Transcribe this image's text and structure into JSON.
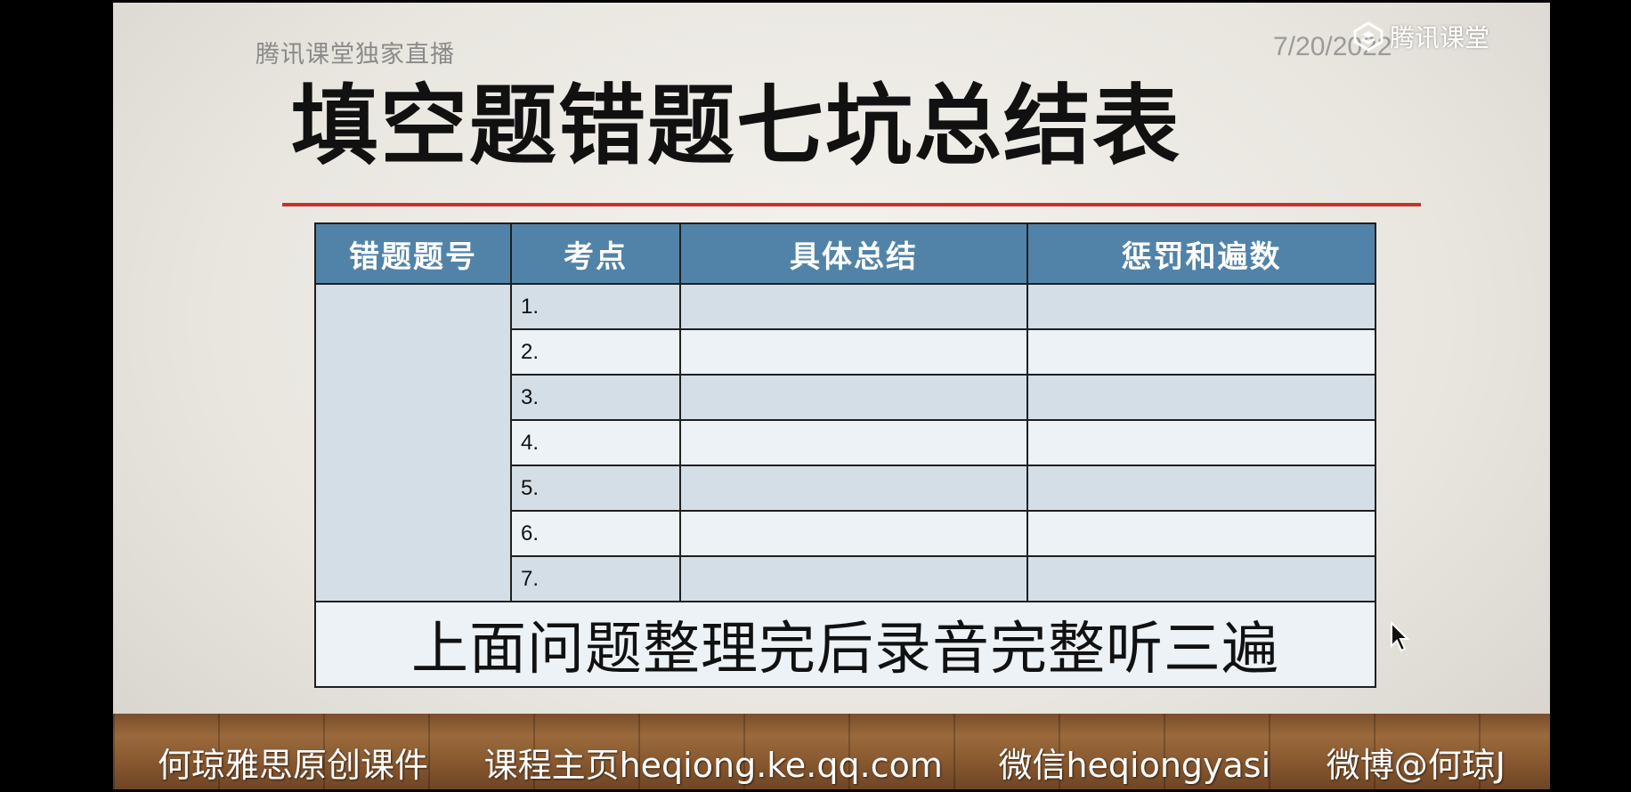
{
  "header": {
    "left_text": "腾讯课堂独家直播",
    "date": "7/20/2022",
    "brand": "腾讯课堂"
  },
  "title": "填空题错题七坑总结表",
  "table": {
    "headers": [
      "错题题号",
      "考点",
      "具体总结",
      "惩罚和遍数"
    ],
    "rows": [
      "1.",
      "2.",
      "3.",
      "4.",
      "5.",
      "6.",
      "7."
    ],
    "footer": "上面问题整理完后录音完整听三遍"
  },
  "footer_bar": {
    "items": [
      "何琼雅思原创课件",
      "课程主页heqiong.ke.qq.com",
      "微信heqiongyasi",
      "微博@何琼J"
    ]
  },
  "colors": {
    "header_bg": "#5183a8",
    "accent_line": "#c8322b"
  }
}
